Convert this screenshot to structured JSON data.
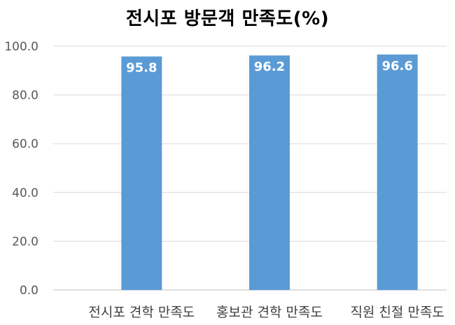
{
  "chart_data": {
    "type": "bar",
    "title": "전시포 방문객 만족도(%)",
    "categories": [
      "전시포 견학 만족도",
      "홍보관 견학 만족도",
      "직원 친절 만족도"
    ],
    "values": [
      95.8,
      96.2,
      96.6
    ],
    "data_labels": [
      "95.8",
      "96.2",
      "96.6"
    ],
    "ylim": [
      0,
      100
    ],
    "yticks": [
      "0.0",
      "20.0",
      "40.0",
      "60.0",
      "80.0",
      "100.0"
    ],
    "ytick_values": [
      0,
      20,
      40,
      60,
      80,
      100
    ],
    "xlabel": "",
    "ylabel": "",
    "grid": true,
    "legend": "none",
    "bar_color": "#5B9BD5"
  }
}
